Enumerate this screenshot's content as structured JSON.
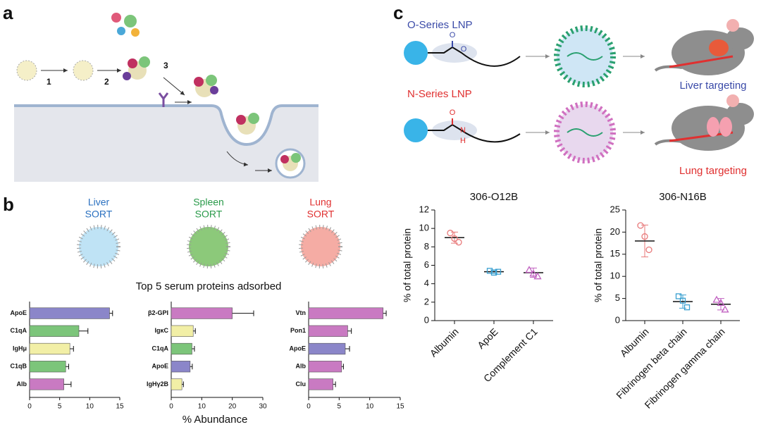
{
  "panel_labels": [
    "a",
    "b",
    "c"
  ],
  "panel_a": {
    "steps": [
      "1",
      "2",
      "3"
    ]
  },
  "panel_b": {
    "headers": [
      {
        "organ": "Liver",
        "label": "SORT"
      },
      {
        "organ": "Spleen",
        "label": "SORT"
      },
      {
        "organ": "Lung",
        "label": "SORT"
      }
    ],
    "title": "Top 5 serum proteins adsorbed",
    "xlabel": "% Abundance"
  },
  "panel_c": {
    "series_labels": [
      {
        "name": "O-Series LNP",
        "target": "Liver targeting"
      },
      {
        "name": "N-Series LNP",
        "target": "Lung targeting"
      }
    ],
    "atoms_o": [
      "O",
      "O"
    ],
    "atoms_n": [
      "O",
      "N",
      "H"
    ]
  },
  "chart_data": [
    {
      "type": "bar",
      "orientation": "horizontal",
      "categories": [
        "ApoE",
        "C1qA",
        "IgHμ",
        "C1qB",
        "Alb"
      ],
      "values": [
        13.3,
        8.2,
        6.7,
        6.0,
        5.7
      ],
      "errors": [
        0.5,
        1.5,
        0.6,
        0.5,
        1.2
      ],
      "colors": [
        "#8b86c9",
        "#7cc57a",
        "#f2efa6",
        "#7cc57a",
        "#c97ac2"
      ],
      "xlim": [
        0,
        15
      ],
      "xticks": [
        0,
        5,
        10,
        15
      ]
    },
    {
      "type": "bar",
      "orientation": "horizontal",
      "categories": [
        "β2-GPI",
        "IgκC",
        "C1qA",
        "ApoE",
        "IgHγ2B"
      ],
      "values": [
        20,
        7.2,
        6.8,
        6.2,
        3.5
      ],
      "errors": [
        7,
        0.7,
        0.8,
        0.7,
        0.5
      ],
      "colors": [
        "#c97ac2",
        "#f2efa6",
        "#7cc57a",
        "#8b86c9",
        "#f2efa6"
      ],
      "xlim": [
        0,
        30
      ],
      "xticks": [
        0,
        10,
        20,
        30
      ]
    },
    {
      "type": "bar",
      "orientation": "horizontal",
      "categories": [
        "Vtn",
        "Pon1",
        "ApoE",
        "Alb",
        "Clu"
      ],
      "values": [
        12.2,
        6.4,
        6.0,
        5.4,
        4.0
      ],
      "errors": [
        0.5,
        0.6,
        0.7,
        0.3,
        0.4
      ],
      "colors": [
        "#c97ac2",
        "#c97ac2",
        "#8b86c9",
        "#c97ac2",
        "#c97ac2"
      ],
      "xlim": [
        0,
        15
      ],
      "xticks": [
        0,
        5,
        10,
        15
      ]
    },
    {
      "type": "dot",
      "title": "306-O12B",
      "ylabel": "% of total protein",
      "categories": [
        "Albumin",
        "ApoE",
        "Complement C1"
      ],
      "values": [
        9.0,
        5.3,
        5.2
      ],
      "errors": [
        0.6,
        0.2,
        0.5
      ],
      "points": [
        [
          9.5,
          8.9,
          8.5
        ],
        [
          5.4,
          5.2,
          5.3
        ],
        [
          5.5,
          5.1,
          4.8
        ]
      ],
      "colors": [
        "#e8797a",
        "#3aa0d0",
        "#c060c0"
      ],
      "markers": [
        "circle",
        "square",
        "triangle"
      ],
      "ylim": [
        0,
        12
      ],
      "yticks": [
        0,
        2,
        4,
        6,
        8,
        10,
        12
      ]
    },
    {
      "type": "dot",
      "title": "306-N16B",
      "ylabel": "% of total protein",
      "categories": [
        "Albumin",
        "Fibrinogen beta chain",
        "Fibrinogen gamma chain"
      ],
      "values": [
        18,
        4.3,
        3.7
      ],
      "errors": [
        3.6,
        1.5,
        1.3
      ],
      "points": [
        [
          21.5,
          19,
          16
        ],
        [
          5.5,
          4.5,
          3
        ],
        [
          4.7,
          4,
          2.5
        ]
      ],
      "colors": [
        "#e8797a",
        "#3aa0d0",
        "#c060c0"
      ],
      "markers": [
        "circle",
        "square",
        "triangle"
      ],
      "ylim": [
        0,
        25
      ],
      "yticks": [
        0,
        5,
        10,
        15,
        20,
        25
      ]
    }
  ]
}
